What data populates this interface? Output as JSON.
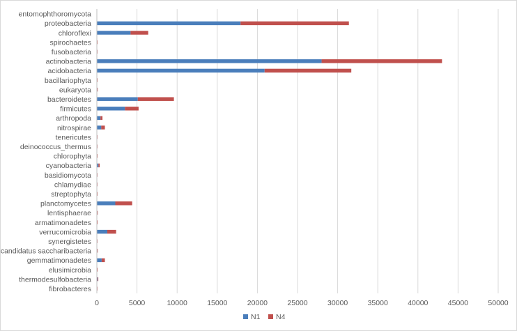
{
  "chart_data": {
    "type": "bar",
    "orientation": "horizontal",
    "stacked": true,
    "categories": [
      "entomophthoromycota",
      "proteobacteria",
      "chloroflexi",
      "spirochaetes",
      "fusobacteria",
      "actinobacteria",
      "acidobacteria",
      "bacillariophyta",
      "eukaryota",
      "bacteroidetes",
      "firmicutes",
      "arthropoda",
      "nitrospirae",
      "tenericutes",
      "deinococcus_thermus",
      "chlorophyta",
      "cyanobacteria",
      "basidiomycota",
      "chlamydiae",
      "streptophyta",
      "planctomycetes",
      "lentisphaerae",
      "armatimonadetes",
      "verrucomicrobia",
      "synergistetes",
      "candidatus saccharibacteria",
      "gemmatimonadetes",
      "elusimicrobia",
      "thermodesulfobacteria",
      "fibrobacteres"
    ],
    "series": [
      {
        "name": "N1",
        "color": "#4a7ebb",
        "values": [
          0,
          17900,
          4200,
          30,
          20,
          28000,
          20900,
          30,
          60,
          5100,
          3500,
          450,
          550,
          20,
          20,
          30,
          200,
          20,
          20,
          30,
          2300,
          60,
          40,
          1300,
          20,
          60,
          600,
          40,
          100,
          20
        ]
      },
      {
        "name": "N4",
        "color": "#c0504d",
        "values": [
          0,
          13500,
          2200,
          20,
          10,
          15000,
          10800,
          20,
          40,
          4500,
          1700,
          250,
          450,
          10,
          10,
          20,
          150,
          10,
          10,
          20,
          2100,
          40,
          30,
          1100,
          10,
          40,
          400,
          20,
          80,
          10
        ]
      }
    ],
    "xlim": [
      0,
      50000
    ],
    "xticks": [
      "0",
      "5000",
      "10000",
      "15000",
      "20000",
      "25000",
      "30000",
      "35000",
      "40000",
      "45000",
      "50000"
    ],
    "grid": "vertical major gridlines",
    "legend": "bottom"
  }
}
